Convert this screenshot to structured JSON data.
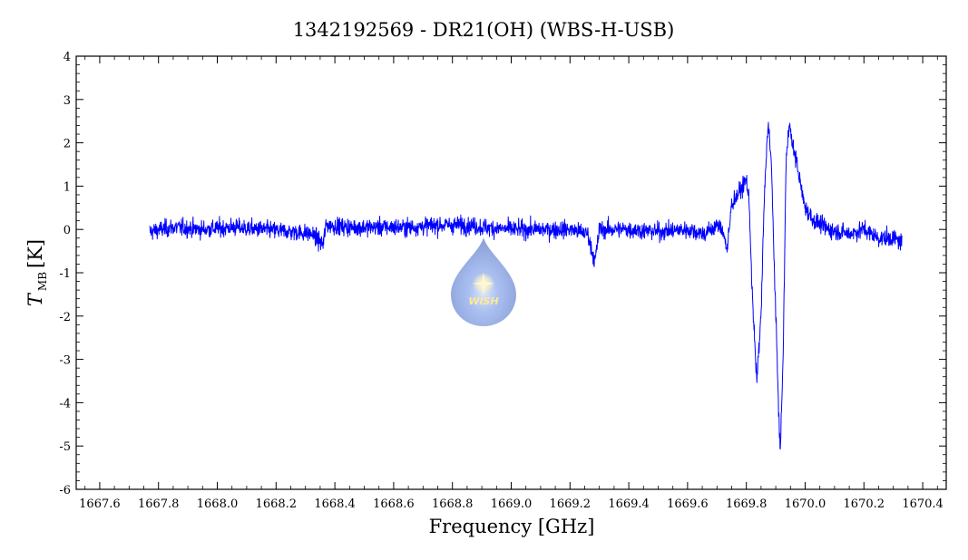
{
  "chart_data": {
    "type": "line",
    "title": "1342192569 - DR21(OH) (WBS-H-USB)",
    "xlabel": "Frequency [GHz]",
    "ylabel_main": "T",
    "ylabel_sub": "MB",
    "ylabel_unit": "[K]",
    "xlim": [
      1667.52,
      1670.48
    ],
    "ylim": [
      -6,
      4
    ],
    "x_ticks": [
      "1667.6",
      "1667.8",
      "1668.0",
      "1668.2",
      "1668.4",
      "1668.6",
      "1668.8",
      "1669.0",
      "1669.2",
      "1669.4",
      "1669.6",
      "1669.8",
      "1670.0",
      "1670.2",
      "1670.4"
    ],
    "y_ticks": [
      "4",
      "3",
      "2",
      "1",
      "0",
      "-1",
      "-2",
      "-3",
      "-4",
      "-5",
      "-6"
    ],
    "grid": false,
    "line_color": "#0000ff",
    "noise_rms": 0.14,
    "series": [
      {
        "x": [
          1667.77,
          1667.85,
          1667.95,
          1668.05,
          1668.15,
          1668.25,
          1668.32,
          1668.36,
          1668.37,
          1668.45,
          1668.55,
          1668.65,
          1668.75,
          1668.85,
          1668.9,
          1669.0,
          1669.1,
          1669.2,
          1669.26,
          1669.285,
          1669.3,
          1669.32,
          1669.4,
          1669.5,
          1669.6,
          1669.66,
          1669.7,
          1669.72,
          1669.735,
          1669.75,
          1669.78,
          1669.8,
          1669.81,
          1669.82,
          1669.835,
          1669.85,
          1669.86,
          1669.87,
          1669.875,
          1669.885,
          1669.9,
          1669.915,
          1669.925,
          1669.935,
          1669.945,
          1669.955,
          1669.97,
          1669.985,
          1670.0,
          1670.03,
          1670.08,
          1670.15,
          1670.2,
          1670.25,
          1670.3,
          1670.33
        ],
        "y": [
          -0.05,
          0.05,
          0.0,
          0.05,
          0.0,
          -0.05,
          -0.1,
          -0.35,
          0.1,
          0.05,
          0.05,
          0.05,
          0.1,
          0.1,
          0.05,
          0.0,
          0.0,
          0.0,
          -0.1,
          -0.75,
          0.0,
          0.0,
          0.0,
          -0.05,
          0.0,
          -0.1,
          0.1,
          0.0,
          -0.5,
          0.6,
          0.9,
          1.15,
          0.6,
          -1.5,
          -3.5,
          -2.0,
          0.5,
          2.0,
          2.5,
          1.5,
          -2.0,
          -5.2,
          -3.0,
          1.5,
          2.5,
          2.0,
          1.6,
          1.0,
          0.5,
          0.2,
          0.0,
          -0.1,
          0.0,
          -0.2,
          -0.2,
          -0.3
        ]
      }
    ]
  }
}
